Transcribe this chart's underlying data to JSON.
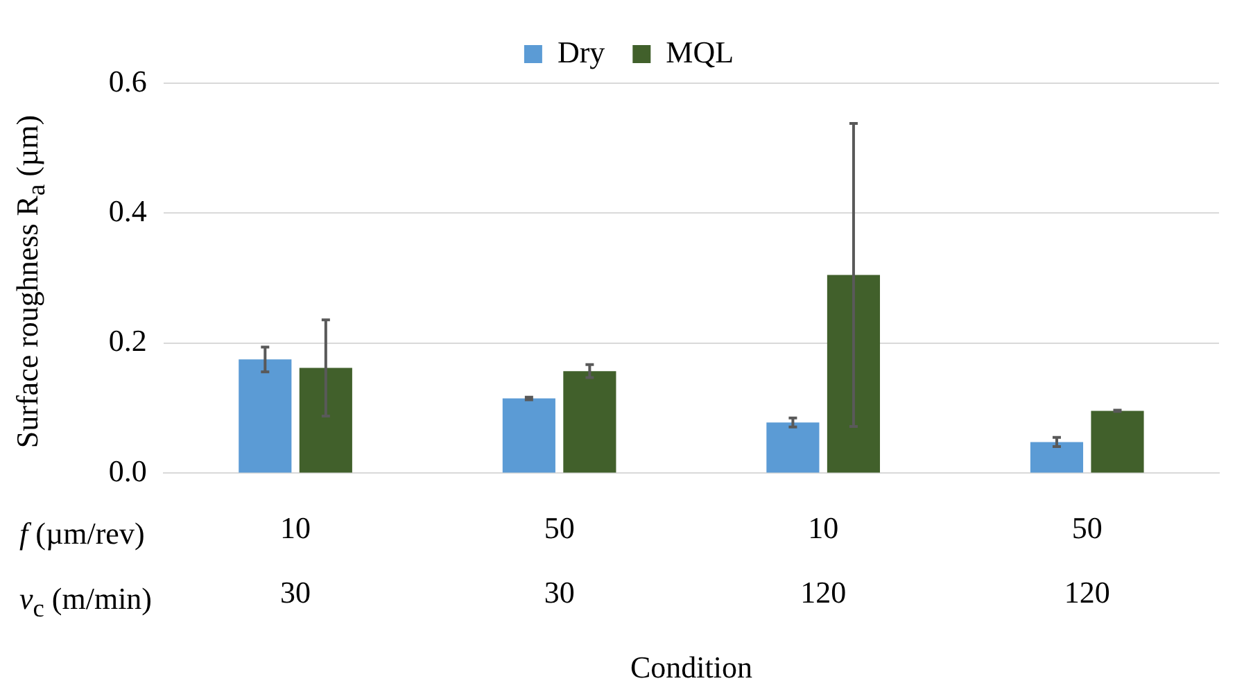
{
  "chart_data": {
    "type": "bar",
    "xlabel": "Condition",
    "ylabel": "Surface roughness R$_{a}$ (µm)",
    "categories": [
      "10\n30",
      "50\n30",
      "10\n120",
      "50\n120"
    ],
    "series": [
      {
        "name": "Dry",
        "color": "#5b9bd5",
        "values": [
          0.175,
          0.115,
          0.078,
          0.048
        ],
        "errors": [
          0.019,
          0.002,
          0.007,
          0.007
        ]
      },
      {
        "name": "MQL",
        "color": "#41602b",
        "values": [
          0.162,
          0.157,
          0.305,
          0.096
        ],
        "errors": [
          0.074,
          0.01,
          0.233,
          0.001
        ]
      }
    ],
    "ylim": [
      0,
      0.6
    ],
    "yticks": [
      {
        "value": 0,
        "label": "0.0"
      },
      {
        "value": 0.2,
        "label": "0.2"
      },
      {
        "value": 0.4,
        "label": "0.4"
      },
      {
        "value": 0.6,
        "label": "0.6"
      }
    ],
    "annotations": [
      "f (µm/rev)",
      "v$_{c}$ (m/min)"
    ],
    "grid": "y",
    "legend": "top"
  }
}
